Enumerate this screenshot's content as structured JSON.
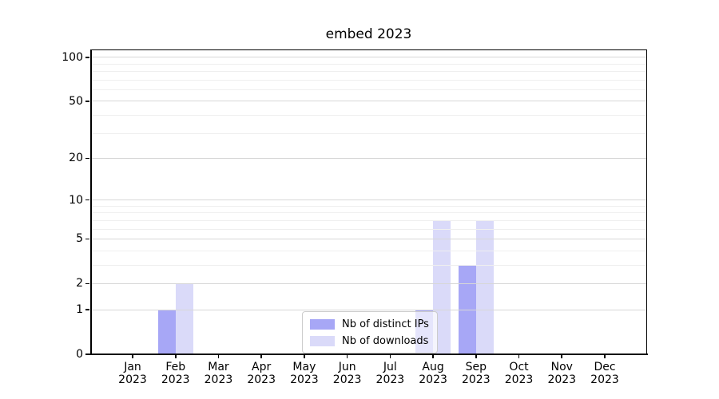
{
  "chart_data": {
    "type": "bar",
    "title": "embed 2023",
    "months": [
      "Jan",
      "Feb",
      "Mar",
      "Apr",
      "May",
      "Jun",
      "Jul",
      "Aug",
      "Sep",
      "Oct",
      "Nov",
      "Dec"
    ],
    "year_label": "2023",
    "series": [
      {
        "name": "Nb of distinct IPs",
        "color": "#a7a7f6",
        "values": [
          0,
          1,
          0,
          0,
          0,
          0,
          0,
          1,
          3,
          0,
          0,
          0
        ]
      },
      {
        "name": "Nb of downloads",
        "color": "#dadaf9",
        "values": [
          0,
          2,
          0,
          0,
          0,
          0,
          0,
          7,
          7,
          0,
          0,
          0
        ]
      }
    ],
    "yscale": "log1p",
    "y_axis": {
      "major_ticks": [
        0,
        1,
        2,
        5,
        10,
        20,
        50,
        100
      ],
      "minor_ticks": [
        3,
        4,
        6,
        7,
        8,
        9,
        30,
        40,
        60,
        70,
        80,
        90
      ],
      "max": 113
    },
    "grid": true,
    "grid_above_bars": true,
    "legend_position": "lower center"
  }
}
